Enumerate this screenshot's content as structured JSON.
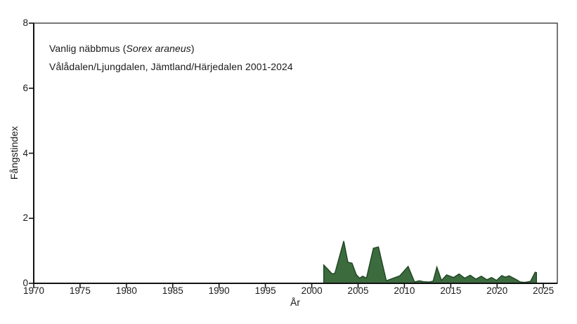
{
  "header": {
    "title_prefix": "Vanlig näbbmus (",
    "title_species": "Sorex araneus",
    "title_suffix": ")",
    "subtitle": "Vålådalen/Ljungdalen, Jämtland/Härjedalen 2001-2024"
  },
  "chart_data": {
    "type": "area",
    "title": "Vanlig näbbmus (Sorex araneus)",
    "subtitle": "Vålådalen/Ljungdalen, Jämtland/Härjedalen 2001-2024",
    "xlabel": "År",
    "ylabel": "Fångstindex",
    "xlim": [
      1970,
      2026.5
    ],
    "ylim": [
      0,
      8
    ],
    "x_ticks": [
      1970,
      1975,
      1980,
      1985,
      1990,
      1995,
      2000,
      2005,
      2010,
      2015,
      2020,
      2025
    ],
    "y_ticks": [
      0,
      2,
      4,
      6,
      8
    ],
    "grid": false,
    "legend": "none",
    "series": [
      {
        "name": "Fångstindex",
        "fill_color": "#3c6b3e",
        "line_color": "#1f4523",
        "points": [
          [
            2001.3,
            0.56
          ],
          [
            2001.75,
            0.43
          ],
          [
            2002.2,
            0.29
          ],
          [
            2002.5,
            0.31
          ],
          [
            2003.45,
            1.3
          ],
          [
            2003.9,
            0.65
          ],
          [
            2004.35,
            0.62
          ],
          [
            2004.8,
            0.27
          ],
          [
            2005.15,
            0.16
          ],
          [
            2005.5,
            0.22
          ],
          [
            2005.9,
            0.16
          ],
          [
            2006.65,
            1.08
          ],
          [
            2007.2,
            1.12
          ],
          [
            2008.05,
            0.08
          ],
          [
            2008.8,
            0.16
          ],
          [
            2009.5,
            0.23
          ],
          [
            2010.4,
            0.52
          ],
          [
            2011.1,
            0.04
          ],
          [
            2011.6,
            0.08
          ],
          [
            2012.1,
            0.05
          ],
          [
            2012.7,
            0.04
          ],
          [
            2013.1,
            0.07
          ],
          [
            2013.5,
            0.5
          ],
          [
            2014.0,
            0.09
          ],
          [
            2014.55,
            0.26
          ],
          [
            2015.3,
            0.18
          ],
          [
            2015.9,
            0.29
          ],
          [
            2016.5,
            0.16
          ],
          [
            2017.1,
            0.25
          ],
          [
            2017.7,
            0.13
          ],
          [
            2018.3,
            0.22
          ],
          [
            2018.9,
            0.11
          ],
          [
            2019.4,
            0.18
          ],
          [
            2019.95,
            0.09
          ],
          [
            2020.5,
            0.24
          ],
          [
            2020.9,
            0.19
          ],
          [
            2021.3,
            0.23
          ],
          [
            2022.1,
            0.11
          ],
          [
            2022.5,
            0.04
          ],
          [
            2023.0,
            0.03
          ],
          [
            2023.6,
            0.06
          ],
          [
            2024.1,
            0.34
          ],
          [
            2024.25,
            0.33
          ]
        ]
      }
    ]
  },
  "colors": {
    "text": "#1a1a1a",
    "axis": "#111111",
    "frame": "#4a4a4a",
    "background": "#ffffff"
  }
}
